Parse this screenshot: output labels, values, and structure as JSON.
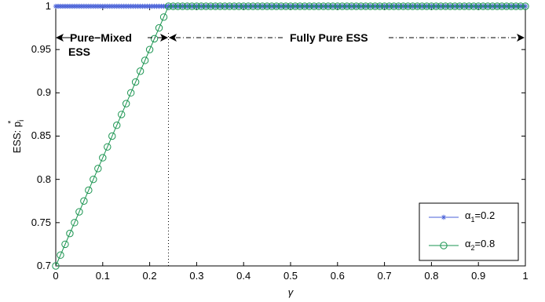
{
  "chart_data": {
    "type": "line",
    "xlabel": "γ",
    "ylabel_main": "ESS: p",
    "ylabel_sub": "i",
    "ylabel_sup": "*",
    "xlim": [
      0,
      1
    ],
    "ylim": [
      0.7,
      1
    ],
    "xticks": [
      "0",
      "0.1",
      "0.2",
      "0.3",
      "0.4",
      "0.5",
      "0.6",
      "0.7",
      "0.8",
      "0.9",
      "1"
    ],
    "yticks": [
      "0.7",
      "0.75",
      "0.8",
      "0.85",
      "0.9",
      "0.95",
      "1"
    ],
    "grid": false,
    "legend_position": "bottom-right",
    "threshold_x": 0.24,
    "series": [
      {
        "legend_prefix": "α",
        "legend_sub": "1",
        "legend_suffix": "=0.2",
        "color": "#4a62d8",
        "marker": "star",
        "x_step": 0.005,
        "x": [
          0,
          1
        ],
        "y": [
          1,
          1
        ]
      },
      {
        "legend_prefix": "α",
        "legend_sub": "2",
        "legend_suffix": "=0.8",
        "color": "#1a9450",
        "marker": "circle",
        "x_step": 0.01,
        "x": [
          0,
          0.24,
          1
        ],
        "y": [
          0.7,
          1,
          1
        ]
      }
    ],
    "annotations": {
      "pure_mixed_line1": "Pure−Mixed",
      "pure_mixed_line2": "ESS",
      "fully_pure": "Fully Pure ESS"
    }
  }
}
